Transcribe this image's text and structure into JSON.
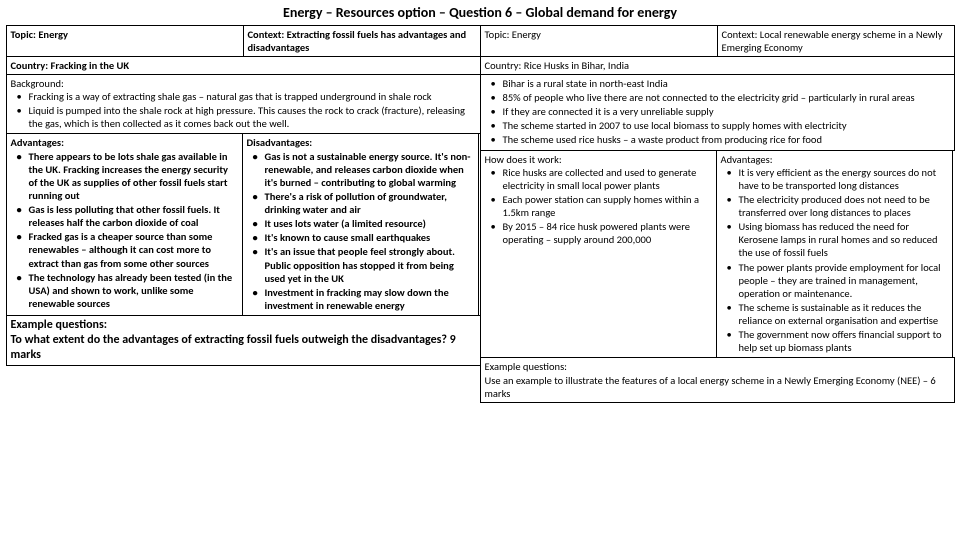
{
  "title": "Energy – Resources option – Question 6 – Global demand for energy",
  "left": {
    "topic": "Topic: Energy",
    "context": "Context: Extracting fossil fuels has advantages and disadvantages",
    "country": "Country: Fracking in the UK",
    "background_heading": "Background:",
    "background_items": [
      "Fracking is a way of extracting shale gas – natural gas that is trapped underground in shale rock",
      "Liquid is pumped into the shale rock at high pressure. This causes the rock to crack (fracture), releasing the gas, which is then collected as it comes back out the well."
    ],
    "advantages_heading": "Advantages:",
    "advantages_items": [
      "There appears to be lots shale gas available in the UK. Fracking increases the energy security of the UK as supplies of other fossil fuels start running out",
      "Gas is less polluting that other fossil fuels. It releases half the carbon dioxide of coal",
      "Fracked gas is a cheaper source than some renewables – although it can cost more to extract than gas from some other sources",
      "The technology has already been tested (in the USA) and shown to work, unlike some renewable sources"
    ],
    "disadvantages_heading": "Disadvantages:",
    "disadvantages_items": [
      "Gas is not a sustainable energy source. It's non-renewable, and releases carbon dioxide when it's burned – contributing to global warming",
      "There's a risk of pollution of groundwater, drinking water and air",
      "It uses lots water (a limited resource)",
      "It's known to cause small earthquakes",
      "It's an issue that people feel strongly about. Public opposition has stopped it from being used yet in the UK",
      "Investment in fracking may slow down the investment in renewable energy"
    ],
    "example_heading": "Example questions:",
    "example_text": "To what extent do the advantages of extracting fossil fuels outweigh the disadvantages? 9 marks"
  },
  "right": {
    "topic": "Topic: Energy",
    "context": "Context: Local renewable energy scheme in a Newly Emerging Economy",
    "country": "Country: Rice Husks in Bihar, India",
    "background_items": [
      "Bihar is a rural state in north-east India",
      "85% of people who live there are not connected to the electricity grid – particularly in rural areas",
      "If they are connected it is a very unreliable supply",
      "The scheme started in 2007 to use local biomass to supply homes with electricity",
      "The scheme used rice husks – a waste product from producing rice for food"
    ],
    "how_heading": "How does it work:",
    "how_items": [
      "Rice husks are collected and used to generate electricity in small local power plants",
      "Each power station can supply homes within a 1.5km range",
      "By 2015 – 84 rice husk powered plants were operating – supply around 200,000"
    ],
    "advantages_heading": "Advantages:",
    "advantages_items": [
      "It is very efficient as the energy sources do not have to be transported long distances",
      "The electricity produced does not need to be transferred over long distances to places",
      "Using biomass has reduced the need for Kerosene lamps in rural homes and so reduced the use of fossil fuels",
      "The power plants provide employment for local people – they are trained in management, operation or maintenance.",
      "The scheme is sustainable as it reduces the reliance on external organisation and expertise",
      "The government now offers financial support to help set up biomass plants"
    ],
    "example_heading": "Example questions:",
    "example_text": "Use an example to illustrate the features of a local energy scheme in a Newly Emerging Economy (NEE) – 6 marks"
  }
}
